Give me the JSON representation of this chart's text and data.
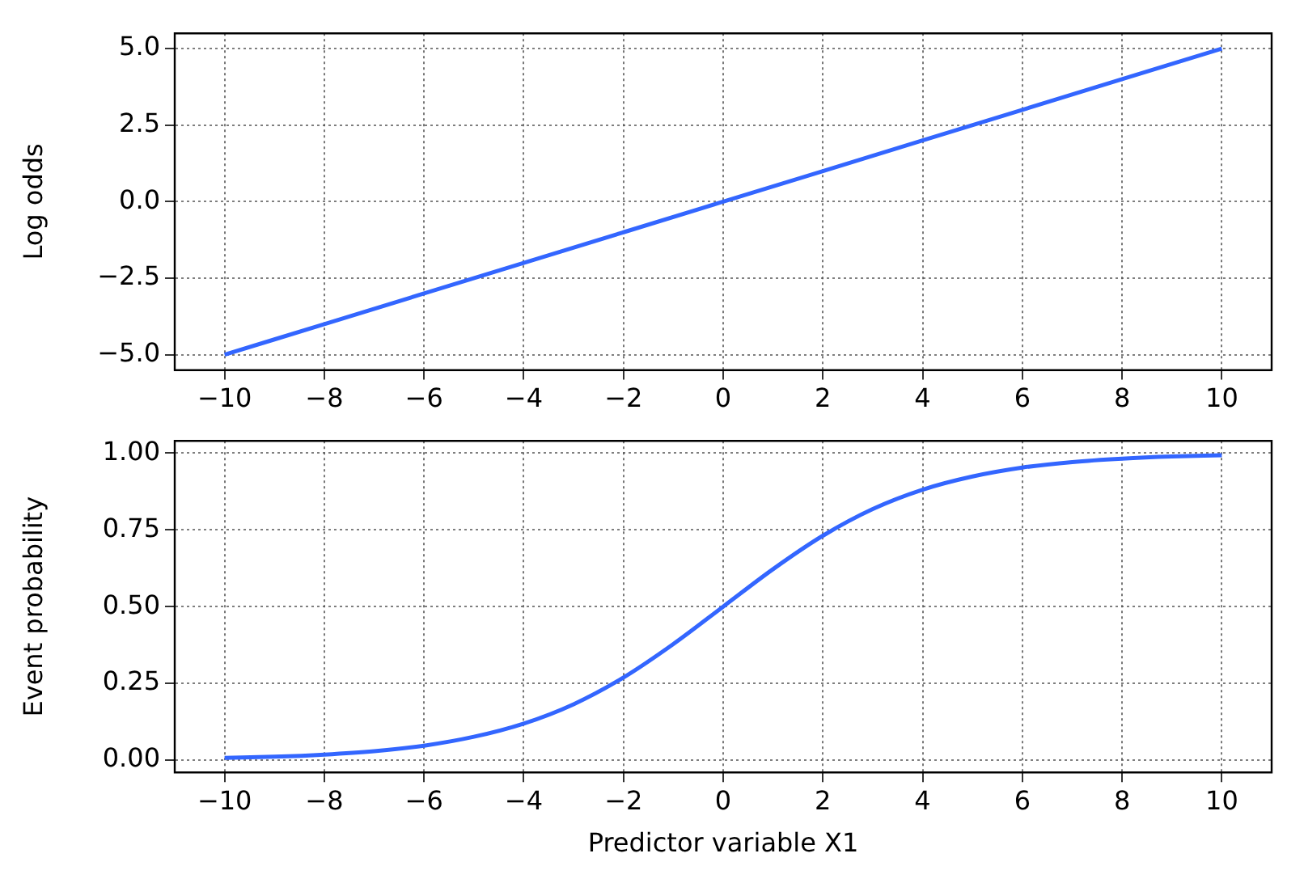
{
  "chart_data": [
    {
      "type": "line",
      "ylabel": "Log odds",
      "x": [
        -10,
        -8,
        -6,
        -4,
        -2,
        0,
        2,
        4,
        6,
        8,
        10
      ],
      "series": [
        {
          "color": "#3366ff",
          "values": [
            -5,
            -4,
            -3,
            -2,
            -1,
            0,
            1,
            2,
            3,
            4,
            5
          ]
        }
      ],
      "xlim": [
        -11,
        11
      ],
      "xticks": [
        {
          "value": -10,
          "label": "−10"
        },
        {
          "value": -8,
          "label": "−8"
        },
        {
          "value": -6,
          "label": "−6"
        },
        {
          "value": -4,
          "label": "−4"
        },
        {
          "value": -2,
          "label": "−2"
        },
        0,
        2,
        4,
        6,
        8,
        10
      ],
      "ylim": [
        -5.5,
        5.5
      ],
      "yticks": [
        {
          "value": -5,
          "label": "−5.0"
        },
        {
          "value": -2.5,
          "label": "−2.5"
        },
        {
          "value": 0,
          "label": "0.0"
        },
        2.5,
        {
          "value": 5,
          "label": "5.0"
        }
      ],
      "grid": true,
      "legend": false,
      "marker": "none",
      "line_style": "solid"
    },
    {
      "type": "line",
      "xlabel": "Predictor variable X1",
      "ylabel": "Event probability",
      "x": [
        -10,
        -9,
        -8,
        -7,
        -6,
        -5,
        -4,
        -3,
        -2,
        -1,
        0,
        1,
        2,
        3,
        4,
        5,
        6,
        7,
        8,
        9,
        10
      ],
      "series": [
        {
          "color": "#3366ff",
          "values": [
            0.007,
            0.011,
            0.018,
            0.029,
            0.047,
            0.076,
            0.119,
            0.182,
            0.269,
            0.378,
            0.5,
            0.622,
            0.731,
            0.818,
            0.881,
            0.924,
            0.953,
            0.971,
            0.982,
            0.989,
            0.993
          ]
        }
      ],
      "xlim": [
        -11,
        11
      ],
      "xticks": [
        {
          "value": -10,
          "label": "−10"
        },
        {
          "value": -8,
          "label": "−8"
        },
        {
          "value": -6,
          "label": "−6"
        },
        {
          "value": -4,
          "label": "−4"
        },
        {
          "value": -2,
          "label": "−2"
        },
        0,
        2,
        4,
        6,
        8,
        10
      ],
      "ylim": [
        -0.04,
        1.04
      ],
      "yticks": [
        {
          "value": 0,
          "label": "0.00"
        },
        0.25,
        {
          "value": 0.5,
          "label": "0.50"
        },
        0.75,
        {
          "value": 1,
          "label": "1.00"
        }
      ],
      "grid": true,
      "legend": false,
      "marker": "none",
      "line_style": "solid"
    }
  ]
}
